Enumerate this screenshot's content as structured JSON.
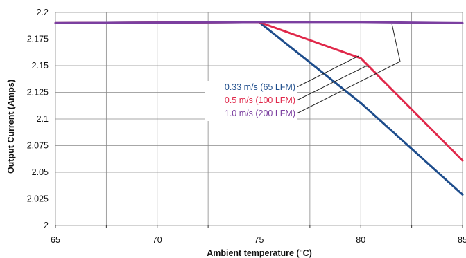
{
  "chart_data": {
    "type": "line",
    "title": "",
    "xlabel": "Ambient temperature (°C)",
    "ylabel": "Output Current (Amps)",
    "xlim": [
      65,
      85
    ],
    "ylim": [
      2,
      2.2
    ],
    "grid": true,
    "x_ticks": [
      "65",
      "70",
      "75",
      "80",
      "85"
    ],
    "y_ticks": [
      "2",
      "2.025",
      "2.05",
      "2.075",
      "2.1",
      "2.125",
      "2.15",
      "2.175",
      "2.2"
    ],
    "series": [
      {
        "name": "0.33 m/s (65 LFM)",
        "color": "#1e4d8c",
        "x": [
          65,
          75,
          80,
          85
        ],
        "y": [
          2.19,
          2.191,
          2.115,
          2.029
        ]
      },
      {
        "name": "0.5 m/s (100 LFM)",
        "color": "#e0284a",
        "x": [
          65,
          75,
          80,
          85
        ],
        "y": [
          2.19,
          2.191,
          2.157,
          2.061
        ]
      },
      {
        "name": "1.0 m/s (200 LFM)",
        "color": "#7b3fa0",
        "x": [
          65,
          75,
          80,
          85
        ],
        "y": [
          2.19,
          2.191,
          2.191,
          2.19
        ]
      }
    ],
    "legend_placement": "center, with leader lines to curves"
  }
}
